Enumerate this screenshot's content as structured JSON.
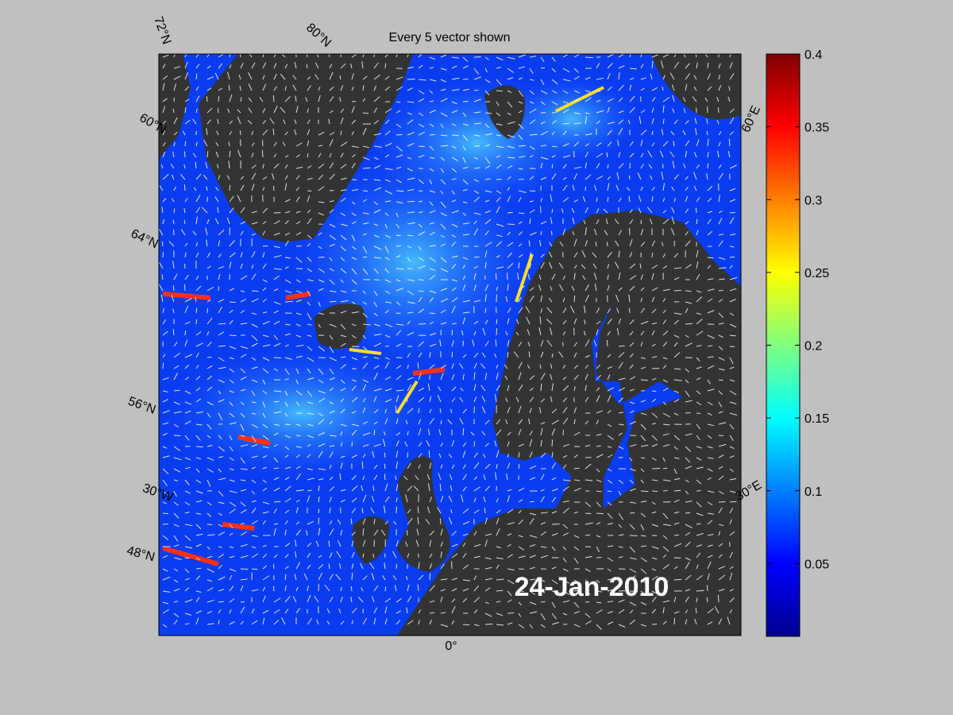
{
  "map": {
    "title": "Every 5 vector shown",
    "date": "24-Jan-2010",
    "grid_labels": [
      "72°N",
      "80°N",
      "60°N",
      "64°N",
      "56°N",
      "30°W",
      "48°N",
      "0°",
      "30°E",
      "60°E"
    ]
  },
  "colorbar": {
    "lim": [
      0,
      0.4
    ],
    "ticks": [
      0.05,
      0.1,
      0.15,
      0.2,
      0.25,
      0.3,
      0.35,
      0.4
    ]
  }
}
